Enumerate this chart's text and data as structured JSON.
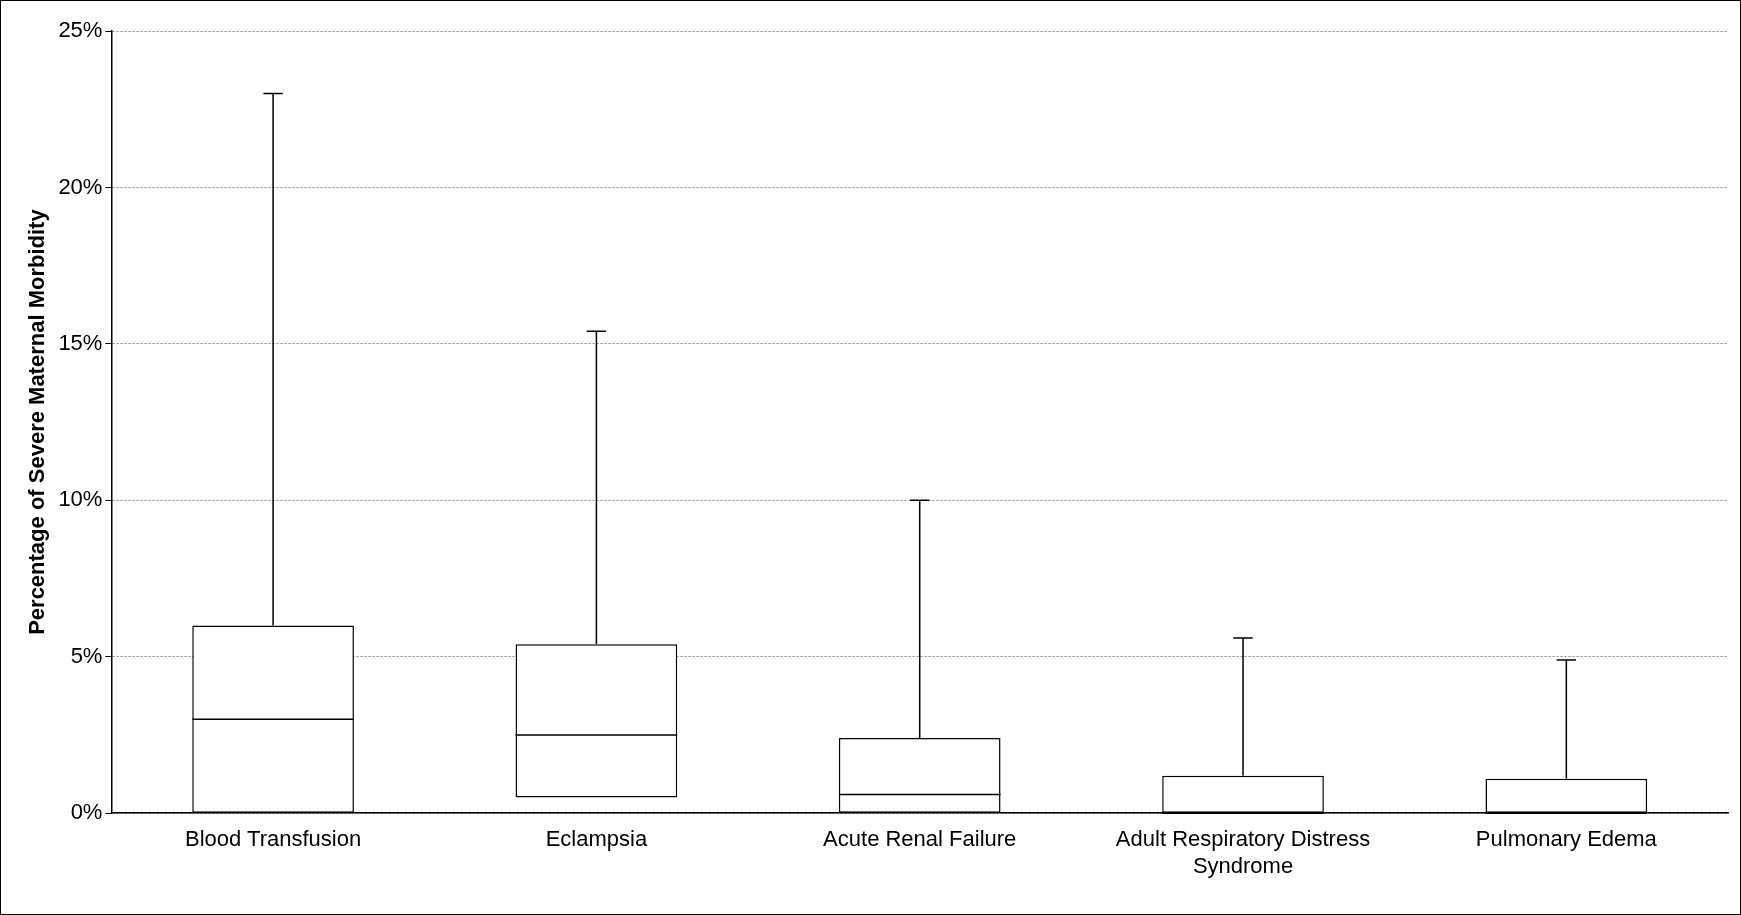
{
  "chart_data": {
    "type": "box",
    "ylabel": "Percentage of Severe Maternal Morbidity",
    "categories": [
      "Blood Transfusion",
      "Eclampsia",
      "Acute Renal Failure",
      "Adult Respiratory Distress Syndrome",
      "Pulmonary Edema"
    ],
    "boxes": [
      {
        "low": 0,
        "q1": 0,
        "median": 3.0,
        "q3": 6.0,
        "high": 23.0
      },
      {
        "low": 0.5,
        "q1": 0.5,
        "median": 2.5,
        "q3": 5.4,
        "high": 15.4
      },
      {
        "low": 0,
        "q1": 0,
        "median": 0.6,
        "q3": 2.4,
        "high": 10.0
      },
      {
        "low": 0,
        "q1": 0,
        "median": 0,
        "q3": 1.2,
        "high": 5.6
      },
      {
        "low": 0,
        "q1": 0,
        "median": 0,
        "q3": 1.1,
        "high": 4.9
      }
    ],
    "color": "#000000",
    "ylim": [
      0,
      25
    ],
    "yticks": [
      {
        "value": 0,
        "label": "0%"
      },
      {
        "value": 5,
        "label": "5%"
      },
      {
        "value": 10,
        "label": "10%"
      },
      {
        "value": 15,
        "label": "15%"
      },
      {
        "value": 20,
        "label": "20%"
      },
      {
        "value": 25,
        "label": "25%"
      }
    ],
    "grid": "y",
    "legend": false
  }
}
